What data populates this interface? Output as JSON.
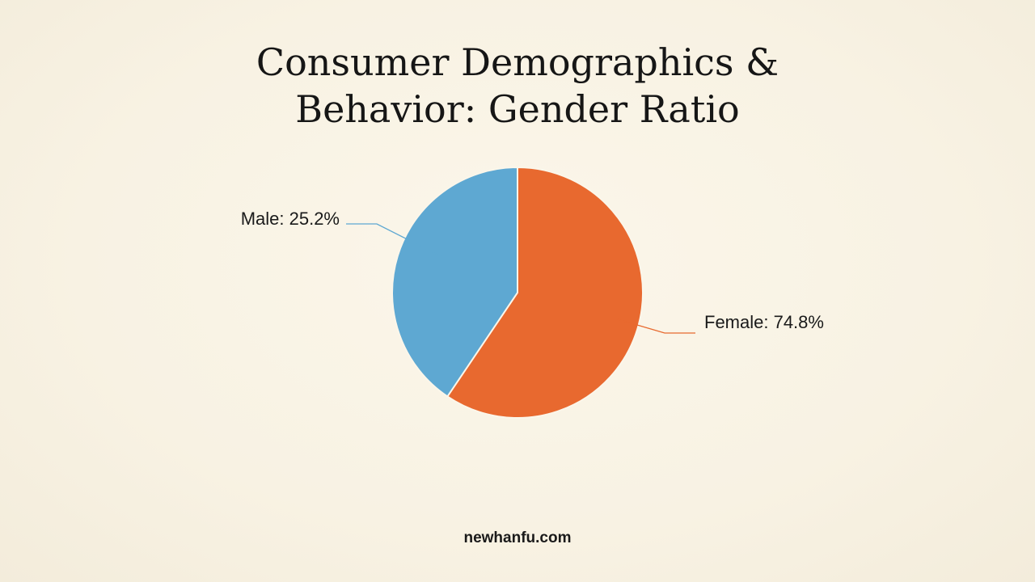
{
  "title_lines": [
    "Consumer Demographics &",
    "Behavior: Gender Ratio"
  ],
  "footer": "newhanfu.com",
  "colors": {
    "male": "#5ea8d2",
    "female": "#e8692f",
    "background": "#f8f2e4"
  },
  "chart_data": {
    "type": "pie",
    "title": "Consumer Demographics & Behavior: Gender Ratio",
    "slices": [
      {
        "label": "Male",
        "value": 25.2,
        "display": "Male: 25.2%",
        "color": "#5ea8d2"
      },
      {
        "label": "Female",
        "value": 74.8,
        "display": "Female: 74.8%",
        "color": "#e8692f"
      }
    ],
    "legend": "none"
  }
}
